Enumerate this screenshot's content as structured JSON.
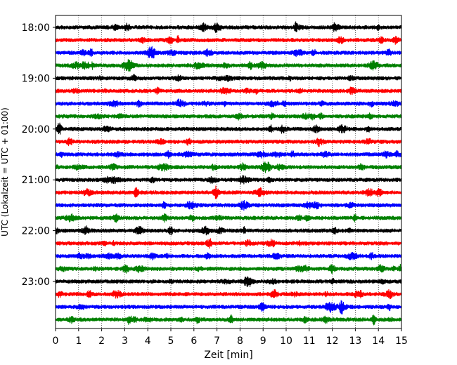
{
  "chart_data": {
    "type": "line",
    "title": "",
    "xlabel": "Zeit  [min]",
    "ylabel": "UTC (Lokalzeit = UTC + 01:00)",
    "xlim": [
      0,
      15
    ],
    "x_ticks": [
      "0",
      "1",
      "2",
      "3",
      "4",
      "5",
      "6",
      "7",
      "8",
      "9",
      "10",
      "11",
      "12",
      "13",
      "14",
      "15"
    ],
    "y_ticks": [
      {
        "label": "18:00",
        "trace_index": 0
      },
      {
        "label": "19:00",
        "trace_index": 4
      },
      {
        "label": "20:00",
        "trace_index": 8
      },
      {
        "label": "21:00",
        "trace_index": 12
      },
      {
        "label": "22:00",
        "trace_index": 16
      },
      {
        "label": "23:00",
        "trace_index": 20
      }
    ],
    "grid": {
      "x": true,
      "style": "dotted"
    },
    "trace_interval_min": 15,
    "trace_count": 24,
    "trace_colors": [
      "#000000",
      "#ff0000",
      "#0000ff",
      "#008000"
    ],
    "events": [
      {
        "trace_index": 17,
        "time_min": 6.7,
        "amplitude": 2.2
      },
      {
        "trace_index": 18,
        "time_min": 6.6,
        "amplitude": 1.5
      },
      {
        "trace_index": 22,
        "time_min": 12.4,
        "amplitude": 2.0
      },
      {
        "trace_index": 23,
        "time_min": 3.2,
        "amplitude": 2.4
      },
      {
        "trace_index": 23,
        "time_min": 13.8,
        "amplitude": 2.5
      },
      {
        "trace_index": 23,
        "time_min": 7.6,
        "amplitude": 1.9
      },
      {
        "trace_index": 2,
        "time_min": 11.2,
        "amplitude": 1.5
      },
      {
        "trace_index": 10,
        "time_min": 4.9,
        "amplitude": 1.3
      }
    ]
  }
}
